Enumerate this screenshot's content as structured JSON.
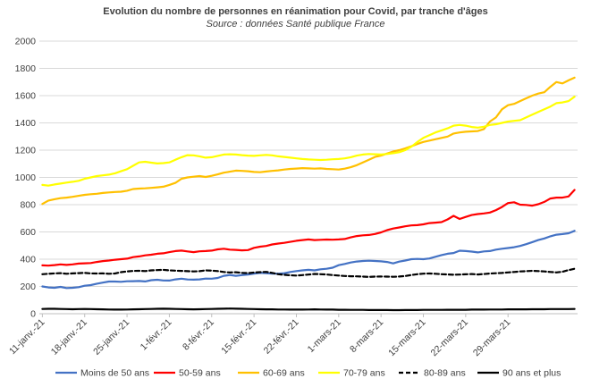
{
  "chart_data": {
    "type": "line",
    "title": "Evolution du nombre de personnes en réanimation pour Covid, par tranche d'âges",
    "subtitle": "Source : données Santé publique France",
    "xlabel": "",
    "ylabel": "",
    "ylim": [
      0,
      2000
    ],
    "yticks": [
      0,
      200,
      400,
      600,
      800,
      1000,
      1200,
      1400,
      1600,
      1800,
      2000
    ],
    "xtick_labels": [
      "11-janv.-21",
      "18-janv.-21",
      "25-janv.-21",
      "1-févr.-21",
      "8-févr.-21",
      "15-févr.-21",
      "22-févr.-21",
      "1-mars-21",
      "8-mars-21",
      "15-mars-21",
      "22-mars-21",
      "29-mars-21"
    ],
    "legend_position": "bottom",
    "series": [
      {
        "name": "Moins de 50 ans",
        "color": "#4472c4",
        "style": "solid",
        "values": [
          200,
          193,
          190,
          197,
          188,
          190,
          195,
          205,
          210,
          220,
          228,
          236,
          236,
          234,
          238,
          239,
          240,
          237,
          246,
          249,
          244,
          243,
          252,
          257,
          251,
          250,
          252,
          258,
          257,
          262,
          278,
          284,
          278,
          283,
          288,
          294,
          300,
          297,
          294,
          294,
          297,
          306,
          313,
          318,
          322,
          318,
          326,
          330,
          338,
          356,
          365,
          376,
          383,
          387,
          389,
          387,
          384,
          380,
          369,
          382,
          390,
          400,
          402,
          400,
          405,
          418,
          430,
          440,
          445,
          462,
          460,
          456,
          450,
          457,
          460,
          470,
          477,
          482,
          488,
          497,
          510,
          525,
          540,
          552,
          568,
          580,
          584,
          590,
          608
        ]
      },
      {
        "name": "50-59 ans",
        "color": "#ff0000",
        "style": "solid",
        "values": [
          355,
          353,
          357,
          362,
          358,
          362,
          368,
          370,
          372,
          380,
          386,
          390,
          396,
          400,
          404,
          415,
          420,
          428,
          433,
          440,
          443,
          452,
          460,
          463,
          457,
          452,
          458,
          460,
          463,
          472,
          477,
          470,
          468,
          465,
          467,
          483,
          492,
          497,
          508,
          515,
          520,
          527,
          535,
          540,
          545,
          540,
          542,
          544,
          543,
          545,
          548,
          560,
          570,
          575,
          578,
          585,
          597,
          613,
          625,
          633,
          641,
          648,
          650,
          656,
          665,
          668,
          672,
          692,
          718,
          695,
          710,
          724,
          731,
          736,
          742,
          760,
          783,
          812,
          818,
          800,
          798,
          793,
          803,
          820,
          845,
          852,
          852,
          860,
          908
        ]
      },
      {
        "name": "60-69 ans",
        "color": "#ffc000",
        "style": "solid",
        "values": [
          805,
          830,
          840,
          848,
          852,
          858,
          865,
          872,
          877,
          880,
          886,
          890,
          893,
          895,
          902,
          915,
          918,
          920,
          923,
          927,
          932,
          945,
          960,
          990,
          1000,
          1005,
          1010,
          1003,
          1012,
          1022,
          1035,
          1042,
          1050,
          1048,
          1045,
          1040,
          1038,
          1043,
          1048,
          1052,
          1058,
          1062,
          1065,
          1068,
          1066,
          1064,
          1066,
          1062,
          1060,
          1058,
          1064,
          1075,
          1090,
          1110,
          1130,
          1150,
          1160,
          1175,
          1190,
          1200,
          1213,
          1228,
          1245,
          1260,
          1270,
          1280,
          1290,
          1300,
          1322,
          1330,
          1335,
          1338,
          1340,
          1355,
          1410,
          1440,
          1500,
          1530,
          1540,
          1560,
          1580,
          1600,
          1615,
          1625,
          1665,
          1700,
          1690,
          1712,
          1732
        ]
      },
      {
        "name": "70-79 ans",
        "color": "#ffff00",
        "style": "solid",
        "values": [
          945,
          940,
          948,
          955,
          962,
          968,
          975,
          990,
          1000,
          1010,
          1015,
          1020,
          1030,
          1045,
          1060,
          1085,
          1110,
          1115,
          1108,
          1102,
          1105,
          1110,
          1130,
          1148,
          1163,
          1162,
          1155,
          1145,
          1148,
          1158,
          1168,
          1170,
          1168,
          1163,
          1160,
          1158,
          1162,
          1165,
          1162,
          1155,
          1150,
          1145,
          1140,
          1135,
          1132,
          1130,
          1128,
          1130,
          1133,
          1135,
          1140,
          1148,
          1160,
          1168,
          1172,
          1170,
          1168,
          1172,
          1178,
          1185,
          1200,
          1225,
          1260,
          1290,
          1310,
          1330,
          1345,
          1360,
          1380,
          1385,
          1380,
          1370,
          1365,
          1372,
          1385,
          1390,
          1400,
          1410,
          1415,
          1420,
          1440,
          1460,
          1480,
          1500,
          1520,
          1545,
          1550,
          1560,
          1592
        ]
      },
      {
        "name": "80-89 ans",
        "color": "#000000",
        "style": "dashed",
        "values": [
          290,
          293,
          296,
          298,
          293,
          296,
          298,
          300,
          296,
          295,
          296,
          293,
          295,
          305,
          310,
          314,
          315,
          313,
          318,
          320,
          322,
          318,
          316,
          314,
          312,
          310,
          312,
          318,
          316,
          313,
          306,
          302,
          304,
          300,
          298,
          302,
          305,
          307,
          300,
          290,
          285,
          282,
          280,
          283,
          287,
          292,
          290,
          288,
          283,
          280,
          277,
          275,
          274,
          272,
          270,
          272,
          273,
          272,
          271,
          273,
          277,
          284,
          290,
          294,
          295,
          293,
          290,
          288,
          286,
          287,
          289,
          291,
          288,
          291,
          295,
          297,
          299,
          303,
          306,
          310,
          312,
          315,
          313,
          310,
          306,
          303,
          308,
          320,
          330
        ]
      },
      {
        "name": "90 ans et plus",
        "color": "#000000",
        "style": "solid",
        "values": [
          35,
          36,
          36,
          35,
          34,
          33,
          34,
          35,
          34,
          33,
          32,
          31,
          30,
          30,
          31,
          32,
          33,
          34,
          35,
          36,
          37,
          36,
          35,
          34,
          33,
          32,
          33,
          34,
          35,
          36,
          37,
          38,
          37,
          36,
          35,
          34,
          33,
          32,
          32,
          31,
          31,
          30,
          30,
          30,
          31,
          32,
          31,
          30,
          30,
          29,
          29,
          28,
          28,
          28,
          27,
          27,
          27,
          27,
          26,
          26,
          27,
          27,
          27,
          28,
          28,
          28,
          28,
          29,
          29,
          29,
          29,
          30,
          30,
          30,
          31,
          31,
          31,
          32,
          32,
          32,
          32,
          33,
          33,
          33,
          34,
          34,
          34,
          34,
          35
        ]
      }
    ]
  }
}
